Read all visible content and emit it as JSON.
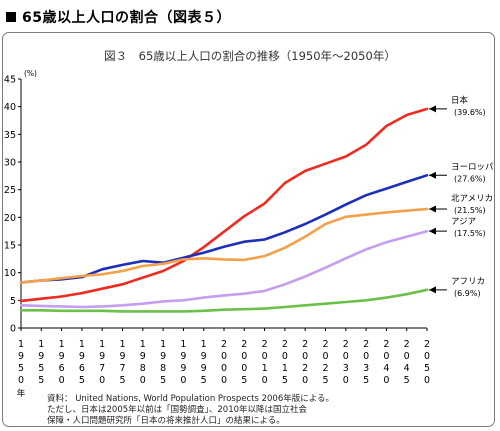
{
  "heading": "65歳以上人口の割合（図表５）",
  "chart_data": {
    "type": "line",
    "title": "図３　65歳以上人口の割合の推移（1950年～2050年）",
    "y_unit": "(%)",
    "x_unit": "年",
    "ylim": [
      0,
      45
    ],
    "yticks": [
      0,
      5,
      10,
      15,
      20,
      25,
      30,
      35,
      40,
      45
    ],
    "grid": false,
    "x": [
      1950,
      1955,
      1960,
      1965,
      1970,
      1975,
      1980,
      1985,
      1990,
      1995,
      2000,
      2005,
      2010,
      2015,
      2020,
      2025,
      2030,
      2035,
      2040,
      2045,
      2050
    ],
    "series": [
      {
        "name": "日本",
        "value_label": "(39.6%)",
        "color": "#ee2b1e",
        "values": [
          4.9,
          5.3,
          5.7,
          6.3,
          7.1,
          7.9,
          9.1,
          10.3,
          12.1,
          14.6,
          17.4,
          20.2,
          22.5,
          26.2,
          28.4,
          29.7,
          31.0,
          33.1,
          36.5,
          38.5,
          39.6
        ]
      },
      {
        "name": "ヨーロッパ",
        "value_label": "(27.6%)",
        "color": "#1c2fb8",
        "values": [
          8.2,
          8.6,
          8.8,
          9.2,
          10.6,
          11.4,
          12.1,
          11.8,
          12.7,
          13.6,
          14.7,
          15.6,
          16.0,
          17.3,
          18.8,
          20.5,
          22.3,
          24.0,
          25.2,
          26.4,
          27.6
        ]
      },
      {
        "name": "北アメリカ",
        "value_label": "(21.5%)",
        "color": "#f5a04a",
        "values": [
          8.2,
          8.6,
          9.0,
          9.4,
          9.7,
          10.3,
          11.2,
          11.6,
          12.4,
          12.6,
          12.4,
          12.3,
          13.0,
          14.5,
          16.5,
          18.8,
          20.1,
          20.5,
          20.9,
          21.2,
          21.5
        ]
      },
      {
        "name": "アジア",
        "value_label": "(17.5%)",
        "color": "#c49ef0",
        "values": [
          4.1,
          4.0,
          3.9,
          3.8,
          3.9,
          4.1,
          4.4,
          4.8,
          5.0,
          5.5,
          5.9,
          6.2,
          6.7,
          7.9,
          9.3,
          10.9,
          12.6,
          14.2,
          15.5,
          16.5,
          17.5
        ]
      },
      {
        "name": "アフリカ",
        "value_label": "(6.9%)",
        "color": "#6cc04a",
        "values": [
          3.2,
          3.2,
          3.1,
          3.1,
          3.1,
          3.0,
          3.0,
          3.0,
          3.0,
          3.1,
          3.3,
          3.4,
          3.5,
          3.8,
          4.1,
          4.4,
          4.7,
          5.0,
          5.5,
          6.1,
          6.9
        ]
      }
    ]
  },
  "source": {
    "line1": "資料： United Nations, World Population Prospects 2006年版による。",
    "line2": "ただし、日本は2005年以前は「国勢調査」、2010年以降は国立社会",
    "line3": "保障・人口問題研究所「日本の将来推計人口」の結果による。"
  }
}
